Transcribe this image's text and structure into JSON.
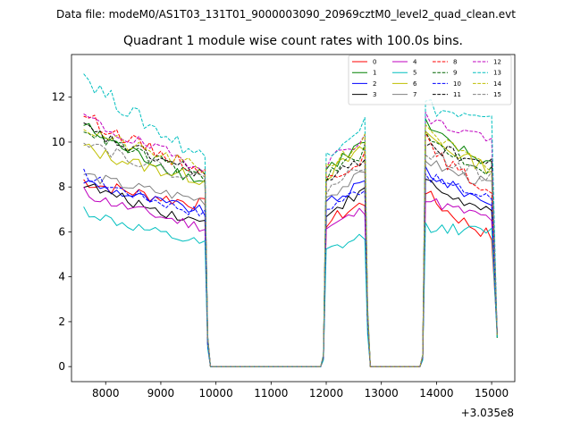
{
  "suptitle": "Data file: modeM0/AS1T03_131T01_9000003090_20969cztM0_level2_quad_clean.evt",
  "chart_data": {
    "type": "line",
    "title": "Quadrant 1 module wise count rates with 100.0s bins.",
    "xlabel": "",
    "ylabel": "",
    "x_offset_label": "+3.035e8",
    "xlim": [
      7380,
      15420
    ],
    "ylim": [
      -0.67,
      13.9
    ],
    "xticks": [
      8000,
      9000,
      10000,
      11000,
      12000,
      13000,
      14000,
      15000
    ],
    "yticks": [
      0,
      2,
      4,
      6,
      8,
      10,
      12
    ],
    "grid": false,
    "legend": {
      "position": "top-right",
      "ncol": 4
    },
    "segments": [
      {
        "x0": 7600,
        "step": 100,
        "n": 23
      },
      {
        "x0": 12000,
        "step": 100,
        "n": 8
      },
      {
        "x0": 13800,
        "step": 100,
        "n": 13
      }
    ],
    "zero_gaps": [
      [
        9900,
        11900
      ],
      [
        12800,
        13700
      ]
    ],
    "series": [
      {
        "name": "0",
        "color": "#ff0000",
        "dash": "solid",
        "levels": [
          8.3,
          7.2,
          7.3,
          5.8
        ],
        "noise": 0.3
      },
      {
        "name": "1",
        "color": "#008000",
        "dash": "solid",
        "levels": [
          10.8,
          8.2,
          10.0,
          9.0
        ],
        "noise": 0.3
      },
      {
        "name": "2",
        "color": "#0000ff",
        "dash": "solid",
        "levels": [
          8.3,
          6.9,
          8.2,
          7.3
        ],
        "noise": 0.25
      },
      {
        "name": "3",
        "color": "#000000",
        "dash": "solid",
        "levels": [
          8.2,
          6.4,
          7.8,
          6.8
        ],
        "noise": 0.25
      },
      {
        "name": "4",
        "color": "#bf00bf",
        "dash": "solid",
        "levels": [
          7.8,
          6.2,
          7.0,
          6.6
        ],
        "noise": 0.25
      },
      {
        "name": "5",
        "color": "#00bfbf",
        "dash": "solid",
        "levels": [
          7.0,
          5.4,
          5.8,
          6.0
        ],
        "noise": 0.25
      },
      {
        "name": "6",
        "color": "#bfbf00",
        "dash": "solid",
        "levels": [
          9.8,
          8.3,
          9.7,
          8.8
        ],
        "noise": 0.3
      },
      {
        "name": "7",
        "color": "#808080",
        "dash": "solid",
        "levels": [
          8.6,
          7.4,
          8.6,
          8.1
        ],
        "noise": 0.25
      },
      {
        "name": "8",
        "color": "#ff0000",
        "dash": "dashed",
        "levels": [
          11.3,
          8.7,
          9.4,
          7.8
        ],
        "noise": 0.3
      },
      {
        "name": "9",
        "color": "#006400",
        "dash": "dashed",
        "levels": [
          10.7,
          8.4,
          9.6,
          8.7
        ],
        "noise": 0.3
      },
      {
        "name": "10",
        "color": "#0000ff",
        "dash": "dashed",
        "levels": [
          8.6,
          6.8,
          8.0,
          7.5
        ],
        "noise": 0.25
      },
      {
        "name": "11",
        "color": "#000000",
        "dash": "dashed",
        "levels": [
          10.7,
          8.6,
          9.3,
          9.0
        ],
        "noise": 0.3
      },
      {
        "name": "12",
        "color": "#bf00bf",
        "dash": "dashed",
        "levels": [
          11.2,
          8.9,
          10.3,
          10.2
        ],
        "noise": 0.3
      },
      {
        "name": "13",
        "color": "#00bfbf",
        "dash": "dashed",
        "levels": [
          13.1,
          9.3,
          10.9,
          10.8
        ],
        "noise": 0.4
      },
      {
        "name": "14",
        "color": "#bfbf00",
        "dash": "dashed",
        "levels": [
          10.7,
          8.8,
          10.1,
          8.7
        ],
        "noise": 0.3
      },
      {
        "name": "15",
        "color": "#808080",
        "dash": "dashed",
        "levels": [
          10.2,
          8.3,
          9.0,
          8.4
        ],
        "noise": 0.3
      }
    ]
  }
}
